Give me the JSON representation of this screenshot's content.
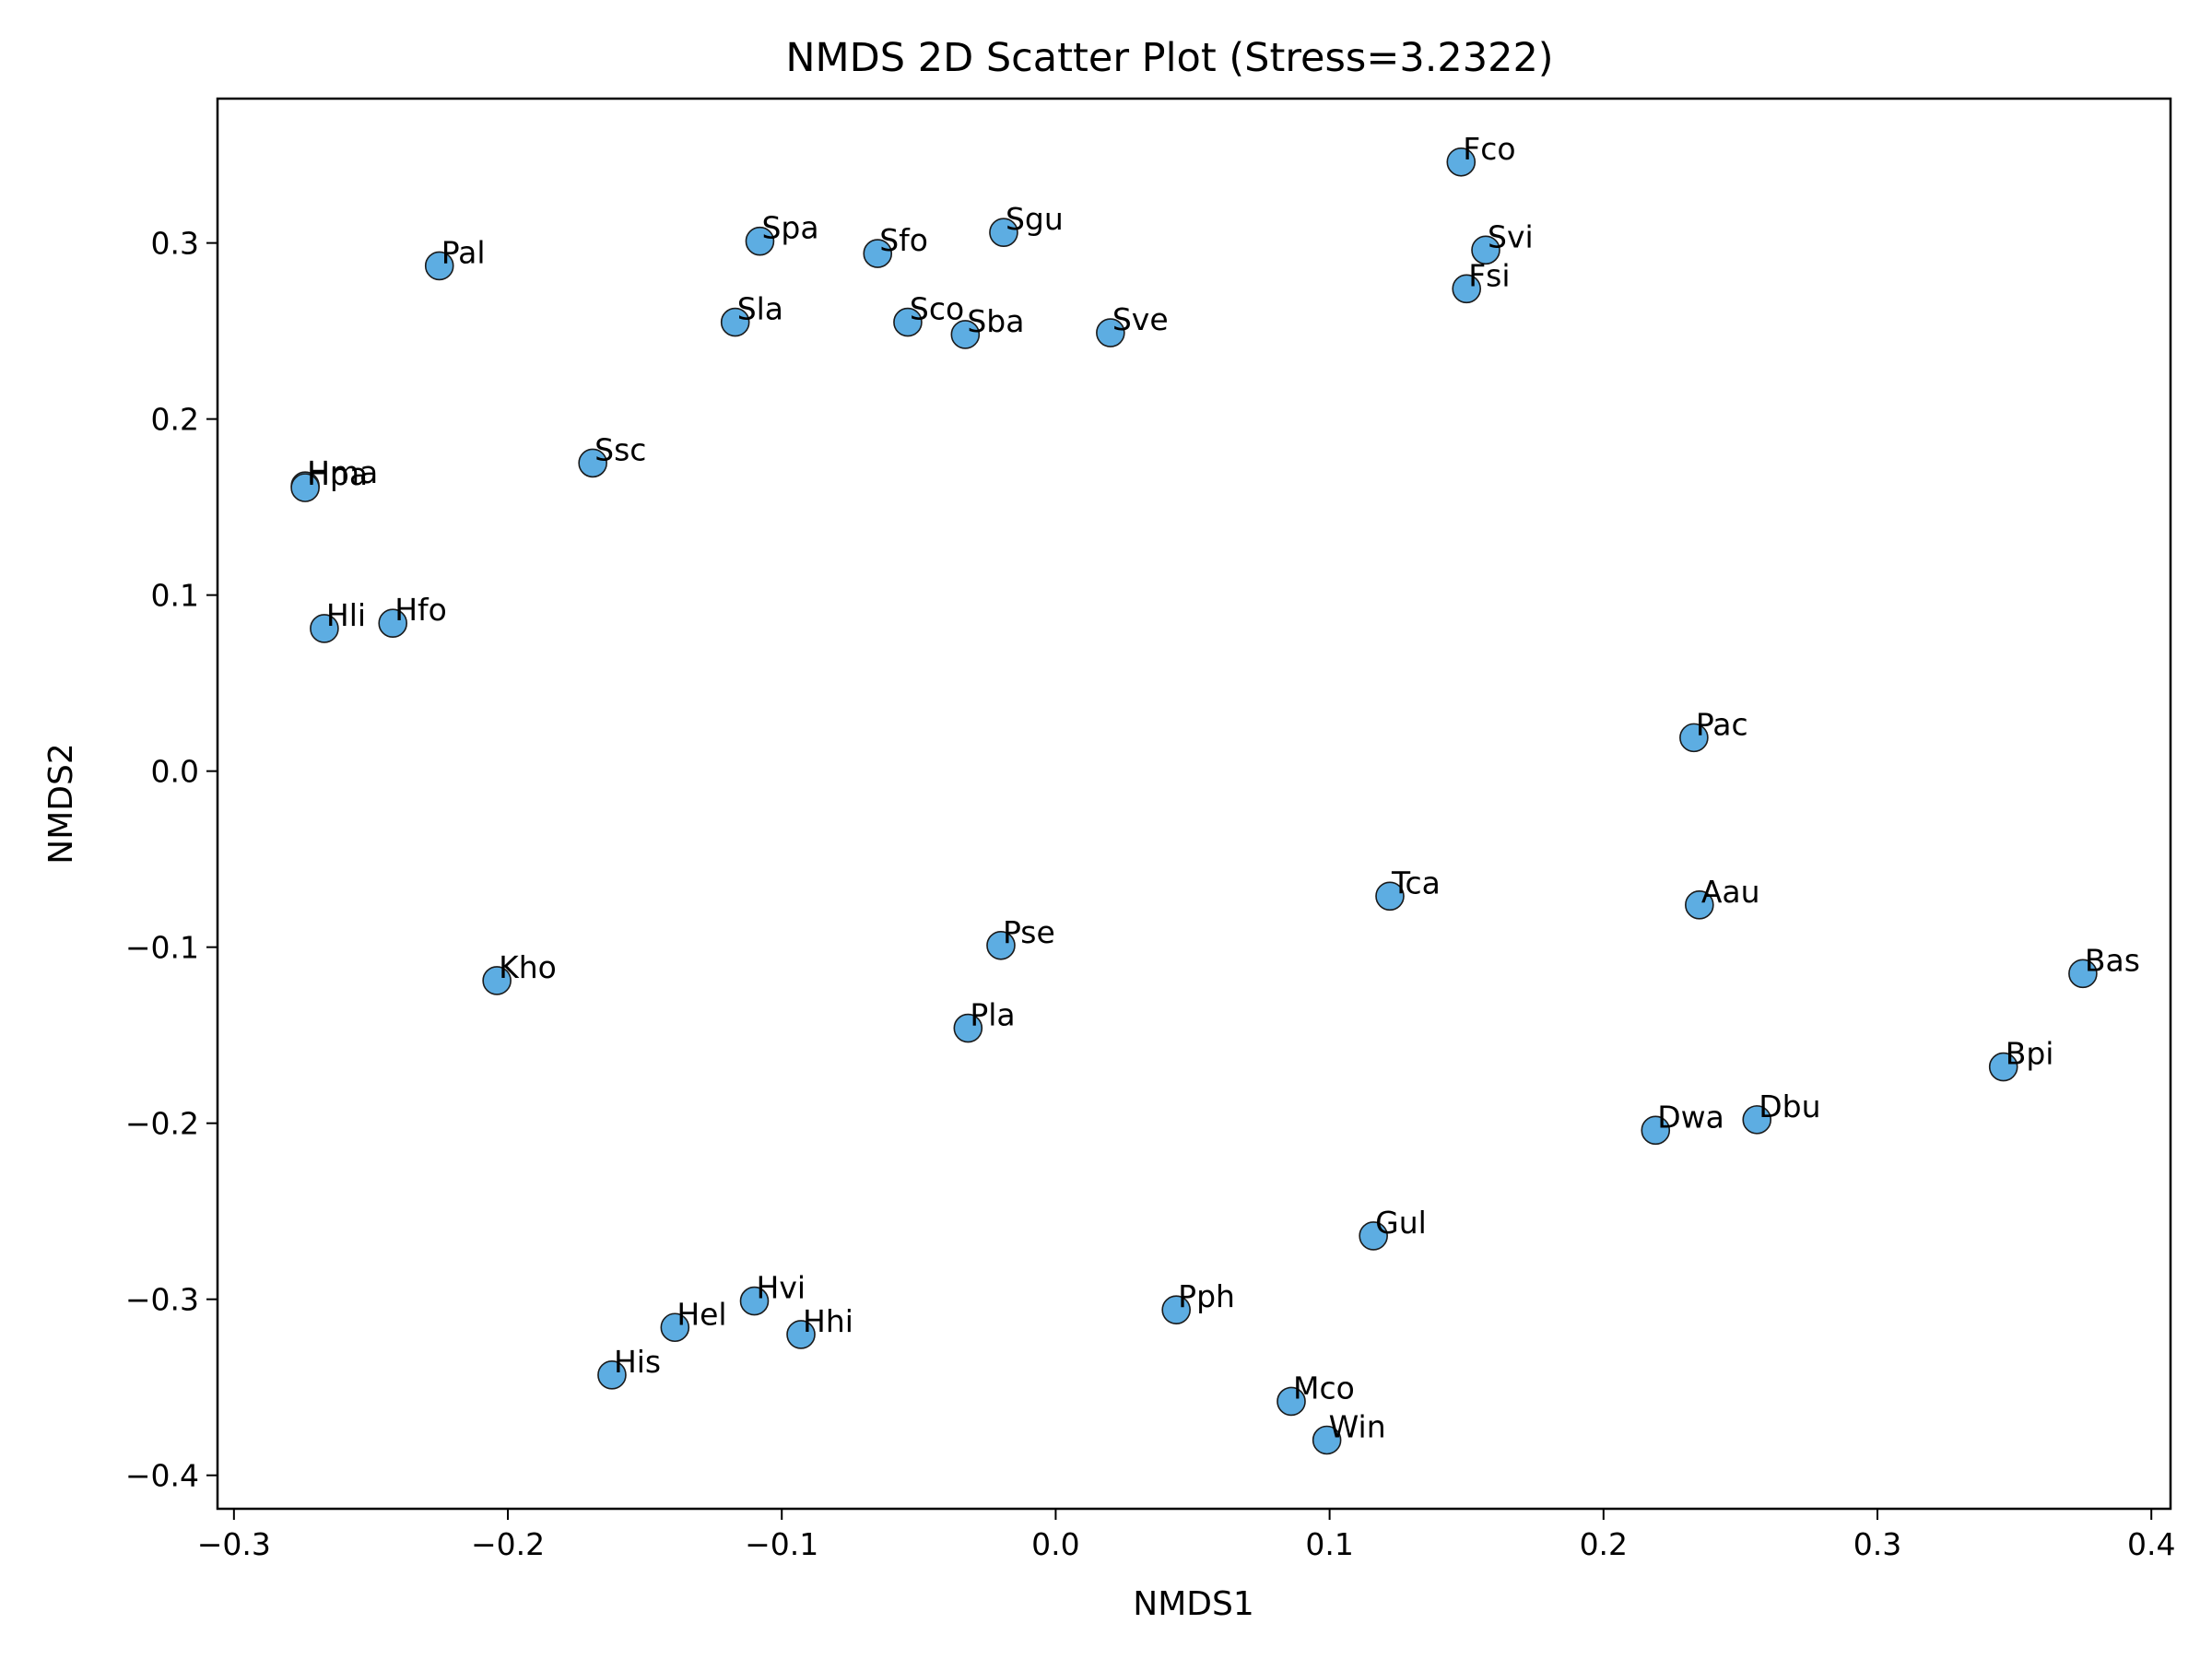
{
  "chart_data": {
    "type": "scatter",
    "title": "NMDS 2D Scatter Plot (Stress=3.2322)",
    "xlabel": "NMDS1",
    "ylabel": "NMDS2",
    "xlim": [
      -0.306,
      0.407
    ],
    "ylim": [
      -0.419,
      0.382
    ],
    "xticks": [
      -0.3,
      -0.2,
      -0.1,
      0.0,
      0.1,
      0.2,
      0.3,
      0.4
    ],
    "xtick_labels": [
      "−0.3",
      "−0.2",
      "−0.1",
      "0.0",
      "0.1",
      "0.2",
      "0.3",
      "0.4"
    ],
    "yticks": [
      -0.4,
      -0.3,
      -0.2,
      -0.1,
      0.0,
      0.1,
      0.2,
      0.3
    ],
    "ytick_labels": [
      "−0.4",
      "−0.3",
      "−0.2",
      "−0.1",
      "0.0",
      "0.1",
      "0.2",
      "0.3"
    ],
    "grid": false,
    "marker_color": "#5dade2",
    "marker_edge": "#1a1a1a",
    "points": [
      {
        "label": "Fco",
        "x": 0.148,
        "y": 0.346
      },
      {
        "label": "Svi",
        "x": 0.157,
        "y": 0.296
      },
      {
        "label": "Fsi",
        "x": 0.15,
        "y": 0.274
      },
      {
        "label": "Sgu",
        "x": -0.019,
        "y": 0.306
      },
      {
        "label": "Spa",
        "x": -0.108,
        "y": 0.301
      },
      {
        "label": "Sfo",
        "x": -0.065,
        "y": 0.294
      },
      {
        "label": "Pal",
        "x": -0.225,
        "y": 0.287
      },
      {
        "label": "Sla",
        "x": -0.117,
        "y": 0.255
      },
      {
        "label": "Sco",
        "x": -0.054,
        "y": 0.255
      },
      {
        "label": "Sba",
        "x": -0.033,
        "y": 0.248
      },
      {
        "label": "Sve",
        "x": 0.02,
        "y": 0.249
      },
      {
        "label": "Ssc",
        "x": -0.169,
        "y": 0.175
      },
      {
        "label": "Hma",
        "x": -0.274,
        "y": 0.162
      },
      {
        "label": "Hpa",
        "x": -0.274,
        "y": 0.161
      },
      {
        "label": "Hli",
        "x": -0.267,
        "y": 0.081
      },
      {
        "label": "Hfo",
        "x": -0.242,
        "y": 0.084
      },
      {
        "label": "Pac",
        "x": 0.233,
        "y": 0.019
      },
      {
        "label": "Tca",
        "x": 0.122,
        "y": -0.071
      },
      {
        "label": "Aau",
        "x": 0.235,
        "y": -0.076
      },
      {
        "label": "Pse",
        "x": -0.02,
        "y": -0.099
      },
      {
        "label": "Kho",
        "x": -0.204,
        "y": -0.119
      },
      {
        "label": "Bas",
        "x": 0.375,
        "y": -0.115
      },
      {
        "label": "Pla",
        "x": -0.032,
        "y": -0.146
      },
      {
        "label": "Bpi",
        "x": 0.346,
        "y": -0.168
      },
      {
        "label": "Dbu",
        "x": 0.256,
        "y": -0.198
      },
      {
        "label": "Dwa",
        "x": 0.219,
        "y": -0.204
      },
      {
        "label": "Gul",
        "x": 0.116,
        "y": -0.264
      },
      {
        "label": "Hvi",
        "x": -0.11,
        "y": -0.301
      },
      {
        "label": "Pph",
        "x": 0.044,
        "y": -0.306
      },
      {
        "label": "Hel",
        "x": -0.139,
        "y": -0.316
      },
      {
        "label": "Hhi",
        "x": -0.093,
        "y": -0.32
      },
      {
        "label": "His",
        "x": -0.162,
        "y": -0.343
      },
      {
        "label": "Mco",
        "x": 0.086,
        "y": -0.358
      },
      {
        "label": "Win",
        "x": 0.099,
        "y": -0.38
      }
    ]
  }
}
